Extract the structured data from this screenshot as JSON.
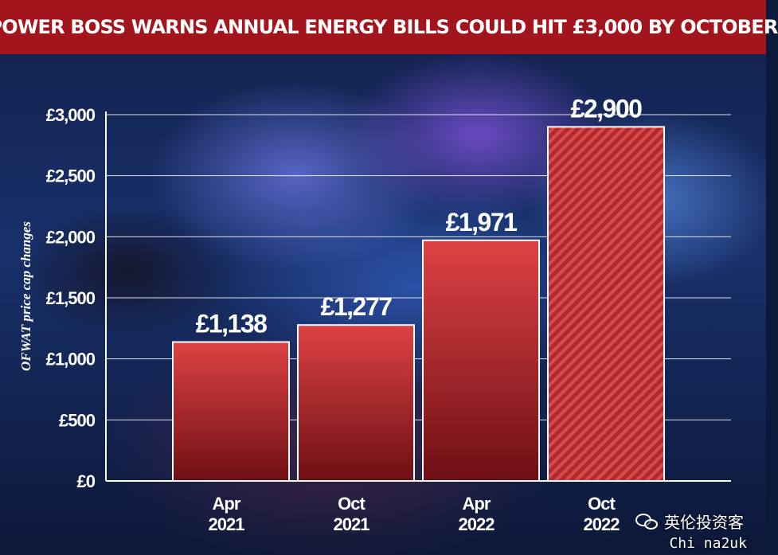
{
  "header": {
    "title": "POWER BOSS WARNS ANNUAL ENERGY BILLS COULD HIT £3,000 BY OCTOBER"
  },
  "colors": {
    "title_bar": "#a3151c",
    "bar_top": "#dd4244",
    "bar_bottom": "#6e0f14",
    "projected_stripe": "#d94a4a",
    "text": "#ffffff"
  },
  "chart_data": {
    "type": "bar",
    "title": "POWER BOSS WARNS ANNUAL ENERGY BILLS COULD HIT £3,000 BY OCTOBER",
    "xlabel": "",
    "ylabel": "OFWAT price cap changes",
    "ylim": [
      0,
      3000
    ],
    "yticks": [
      0,
      500,
      1000,
      1500,
      2000,
      2500,
      3000
    ],
    "ytick_labels": [
      "£0",
      "£500",
      "£1,000",
      "£1,500",
      "£2,000",
      "£2,500",
      "£3,000"
    ],
    "grid": true,
    "categories": [
      [
        "Apr",
        "2021"
      ],
      [
        "Oct",
        "2021"
      ],
      [
        "Apr",
        "2022"
      ],
      [
        "Oct",
        "2022"
      ]
    ],
    "values": [
      1138,
      1277,
      1971,
      2900
    ],
    "value_labels": [
      "£1,138",
      "£1,277",
      "£1,971",
      "£2,900"
    ],
    "projected": [
      false,
      false,
      false,
      true
    ]
  },
  "watermark": {
    "label": "英伦投资客",
    "source": "Chi na2uk",
    "icon": "wechat-icon"
  }
}
